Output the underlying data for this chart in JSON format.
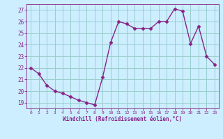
{
  "x": [
    0,
    1,
    2,
    3,
    4,
    5,
    6,
    7,
    8,
    9,
    10,
    11,
    12,
    13,
    14,
    15,
    16,
    17,
    18,
    19,
    20,
    21,
    22,
    23
  ],
  "y": [
    22.0,
    21.5,
    20.5,
    20.0,
    19.8,
    19.5,
    19.2,
    19.0,
    18.8,
    21.2,
    24.2,
    26.0,
    25.8,
    25.4,
    25.4,
    25.4,
    26.0,
    26.0,
    27.1,
    26.9,
    24.1,
    25.6,
    23.0,
    22.3
  ],
  "line_color": "#882288",
  "marker": "D",
  "markersize": 2.5,
  "linewidth": 1.0,
  "bg_color": "#cceeff",
  "grid_color": "#99cccc",
  "xlabel": "Windchill (Refroidissement éolien,°C)",
  "xlabel_color": "#882288",
  "tick_color": "#882288",
  "ylim": [
    18.5,
    27.5
  ],
  "xlim": [
    -0.5,
    23.5
  ],
  "yticks": [
    19,
    20,
    21,
    22,
    23,
    24,
    25,
    26,
    27
  ],
  "xticks": [
    0,
    1,
    2,
    3,
    4,
    5,
    6,
    7,
    8,
    9,
    10,
    11,
    12,
    13,
    14,
    15,
    16,
    17,
    18,
    19,
    20,
    21,
    22,
    23
  ]
}
